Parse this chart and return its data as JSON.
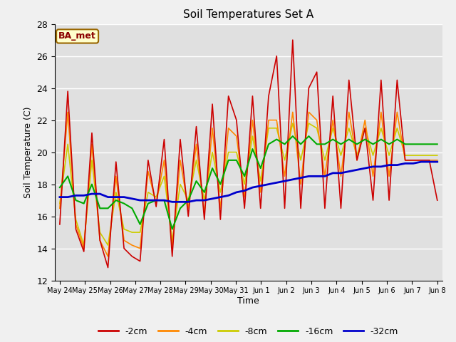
{
  "title": "Soil Temperatures Set A",
  "xlabel": "Time",
  "ylabel": "Soil Temperature (C)",
  "ylim": [
    12,
    28
  ],
  "yticks": [
    12,
    14,
    16,
    18,
    20,
    22,
    24,
    26,
    28
  ],
  "annotation": "BA_met",
  "background_color": "#e0e0e0",
  "series_colors": {
    "-2cm": "#cc0000",
    "-4cm": "#ff8800",
    "-8cm": "#cccc00",
    "-16cm": "#00aa00",
    "-32cm": "#0000cc"
  },
  "x_labels": [
    "May 24",
    "May 25",
    "May 26",
    "May 27",
    "May 28",
    "May 29",
    "May 30",
    "May 31",
    "Jun 1",
    "Jun 2",
    "Jun 3",
    "Jun 4",
    "Jun 5",
    "Jun 6",
    "Jun 7",
    "Jun 8"
  ],
  "n_days": 16,
  "data_2cm": [
    15.5,
    23.8,
    15.2,
    13.8,
    21.2,
    14.5,
    12.8,
    19.4,
    14.0,
    13.5,
    13.2,
    19.5,
    16.6,
    20.8,
    13.5,
    20.8,
    16.0,
    21.6,
    15.8,
    23.0,
    15.8,
    23.5,
    22.0,
    16.5,
    23.5,
    16.5,
    23.5,
    26.0,
    16.5,
    27.0,
    16.5,
    24.0,
    25.0,
    16.5,
    23.5,
    16.5,
    24.5,
    19.5,
    21.5,
    17.0,
    24.5,
    17.0,
    24.5,
    19.5,
    19.5,
    19.5,
    19.5,
    17.0
  ],
  "data_4cm": [
    16.5,
    22.5,
    15.5,
    14.0,
    20.5,
    14.5,
    13.5,
    18.5,
    14.5,
    14.2,
    14.0,
    18.8,
    16.8,
    19.5,
    14.0,
    19.5,
    16.5,
    20.5,
    16.2,
    21.5,
    16.5,
    21.5,
    21.0,
    17.2,
    22.0,
    17.5,
    22.0,
    22.0,
    18.5,
    22.5,
    18.0,
    22.5,
    22.0,
    18.5,
    22.0,
    18.5,
    22.5,
    19.5,
    22.0,
    18.5,
    22.5,
    18.5,
    22.5,
    19.5,
    19.5,
    19.5,
    19.5,
    19.5
  ],
  "data_8cm": [
    16.8,
    20.5,
    15.8,
    14.2,
    19.5,
    15.0,
    14.2,
    17.5,
    15.2,
    15.0,
    15.0,
    17.5,
    17.2,
    18.5,
    14.5,
    18.0,
    17.0,
    19.5,
    17.0,
    20.0,
    17.5,
    20.0,
    20.0,
    18.0,
    21.0,
    18.2,
    21.5,
    21.5,
    19.5,
    21.8,
    19.5,
    21.8,
    21.5,
    19.5,
    21.5,
    19.8,
    21.5,
    19.8,
    21.5,
    19.8,
    21.5,
    19.8,
    21.5,
    19.8,
    19.8,
    19.8,
    19.8,
    19.8
  ],
  "data_16cm": [
    17.8,
    18.5,
    17.0,
    16.8,
    18.0,
    16.5,
    16.5,
    17.0,
    16.8,
    16.5,
    15.5,
    16.8,
    17.0,
    17.0,
    15.2,
    16.5,
    17.0,
    18.2,
    17.5,
    19.0,
    18.0,
    19.5,
    19.5,
    18.5,
    20.2,
    19.0,
    20.5,
    20.8,
    20.5,
    21.0,
    20.5,
    21.0,
    20.5,
    20.5,
    20.8,
    20.5,
    20.8,
    20.5,
    20.8,
    20.5,
    20.8,
    20.5,
    20.8,
    20.5,
    20.5,
    20.5,
    20.5,
    20.5
  ],
  "data_32cm": [
    17.2,
    17.2,
    17.3,
    17.3,
    17.4,
    17.4,
    17.2,
    17.2,
    17.2,
    17.1,
    17.0,
    17.0,
    17.0,
    17.0,
    16.9,
    16.9,
    16.9,
    17.0,
    17.0,
    17.1,
    17.2,
    17.3,
    17.5,
    17.6,
    17.8,
    17.9,
    18.0,
    18.1,
    18.2,
    18.3,
    18.4,
    18.5,
    18.5,
    18.5,
    18.7,
    18.7,
    18.8,
    18.9,
    19.0,
    19.1,
    19.1,
    19.2,
    19.2,
    19.3,
    19.3,
    19.4,
    19.4,
    19.4
  ]
}
